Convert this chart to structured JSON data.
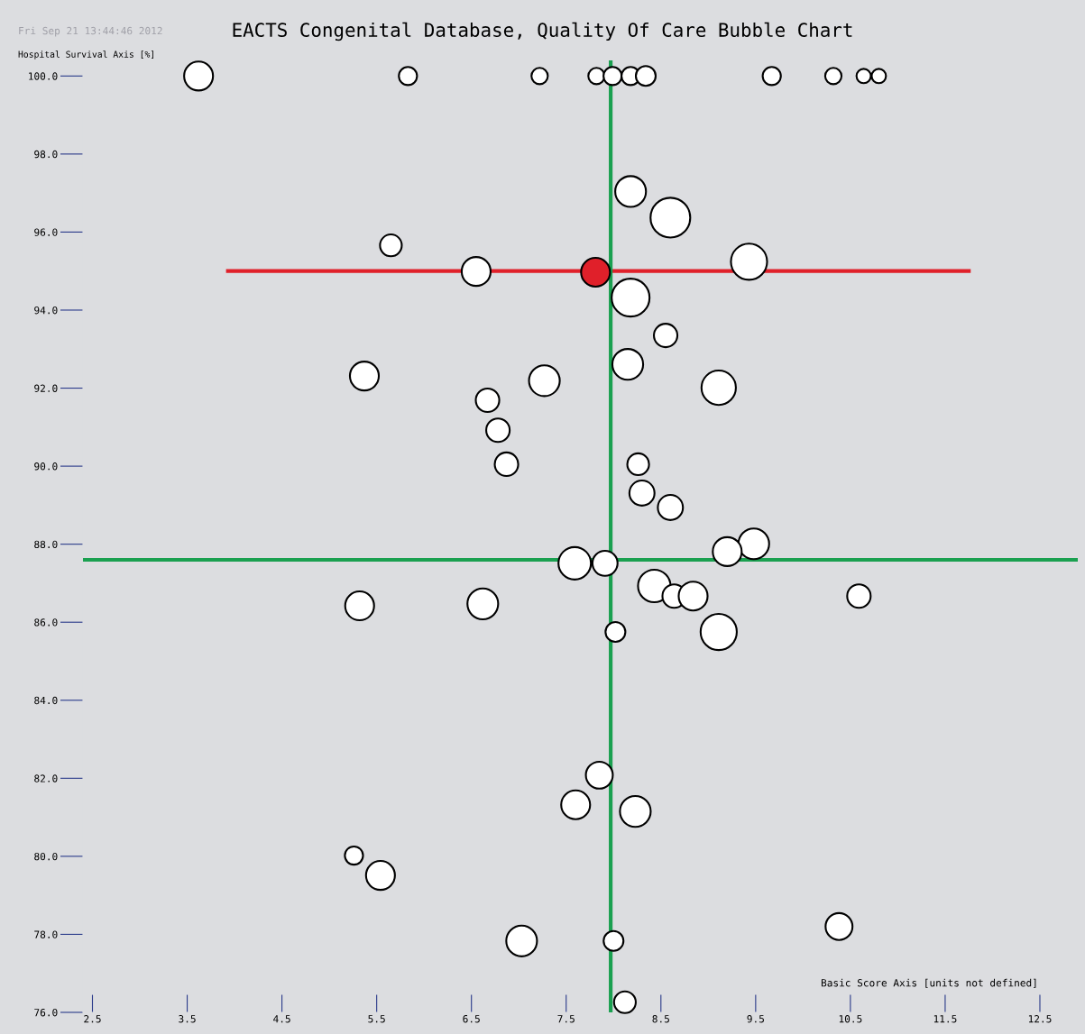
{
  "chart_data": {
    "type": "bubble",
    "title": "EACTS Congenital Database, Quality Of Care Bubble Chart",
    "xlabel": "Basic Score Axis [units not defined]",
    "ylabel": "Hospital Survival Axis [%]",
    "annotations": [
      "Fri Sep 21 13:44:46 2012"
    ],
    "xlim": [
      2.4,
      12.9
    ],
    "ylim": [
      76,
      100.4
    ],
    "xticks": [
      2.5,
      3.5,
      4.5,
      5.5,
      6.5,
      7.5,
      8.5,
      9.5,
      10.5,
      11.5,
      12.5
    ],
    "yticks": [
      {
        "value": 76,
        "label": "76.0"
      },
      {
        "value": 78,
        "label": "78.0"
      },
      {
        "value": 80,
        "label": "80.0"
      },
      {
        "value": 82,
        "label": "82.0"
      },
      {
        "value": 84,
        "label": "84.0"
      },
      {
        "value": 86,
        "label": "86.0"
      },
      {
        "value": 88,
        "label": "88.0"
      },
      {
        "value": 90,
        "label": "90.0"
      },
      {
        "value": 92,
        "label": "92.0"
      },
      {
        "value": 94,
        "label": "94.0"
      },
      {
        "value": 96,
        "label": "96.0"
      },
      {
        "value": 98,
        "label": "98.0"
      },
      {
        "value": 100,
        "label": "100.0"
      }
    ],
    "grid": false,
    "legend": false,
    "ref_lines": [
      {
        "axis": "x",
        "value": 7.97,
        "color": "#1aa050"
      },
      {
        "axis": "y",
        "value": 87.6,
        "color": "#1aa050"
      }
    ],
    "series": [
      {
        "type": "line",
        "color": "#e0202a",
        "x": [
          3.93,
          11.75
        ],
        "values": [
          95.0,
          95.0
        ]
      },
      {
        "color": "#ffffff",
        "x": [
          3.62,
          5.83,
          7.22,
          7.82,
          7.99,
          8.18,
          8.34,
          9.67,
          10.32,
          10.64,
          10.8,
          8.18,
          8.6,
          5.65,
          6.55,
          9.43,
          8.18,
          8.55,
          5.37,
          7.27,
          8.15,
          9.11,
          6.67,
          6.78,
          6.87,
          8.26,
          8.3,
          8.6,
          9.48,
          9.2,
          7.59,
          7.91,
          8.43,
          8.64,
          8.84,
          10.59,
          5.32,
          6.62,
          8.02,
          9.11,
          7.85,
          7.6,
          8.23,
          5.26,
          5.54,
          10.38,
          7.03,
          8.0,
          8.12
        ],
        "values": [
          100,
          100,
          100,
          100,
          100,
          100,
          100,
          100,
          100,
          100,
          100,
          97.04,
          96.37,
          95.66,
          94.99,
          95.24,
          94.32,
          93.35,
          92.31,
          92.19,
          92.61,
          92.01,
          91.69,
          90.92,
          90.05,
          90.05,
          89.31,
          88.94,
          88.01,
          87.81,
          87.51,
          87.51,
          86.93,
          86.67,
          86.67,
          86.67,
          86.42,
          86.47,
          85.75,
          85.75,
          82.08,
          81.32,
          81.15,
          80.02,
          79.51,
          78.2,
          77.83,
          77.83,
          76.26
        ],
        "sizes": [
          0.53,
          0.21,
          0.17,
          0.17,
          0.21,
          0.21,
          0.25,
          0.21,
          0.17,
          0.13,
          0.13,
          0.6,
          1,
          0.3,
          0.53,
          0.83,
          0.91,
          0.35,
          0.53,
          0.6,
          0.6,
          0.75,
          0.35,
          0.35,
          0.35,
          0.3,
          0.4,
          0.4,
          0.6,
          0.53,
          0.67,
          0.4,
          0.67,
          0.35,
          0.53,
          0.35,
          0.53,
          0.6,
          0.25,
          0.83,
          0.46,
          0.53,
          0.6,
          0.21,
          0.53,
          0.46,
          0.6,
          0.25,
          0.3
        ]
      },
      {
        "color": "#e0202a",
        "x": [
          7.81
        ],
        "values": [
          94.97
        ],
        "sizes": [
          0.53
        ]
      }
    ]
  }
}
